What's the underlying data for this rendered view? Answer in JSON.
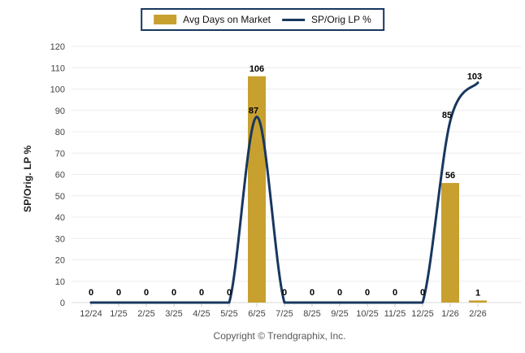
{
  "legend": {
    "items": [
      {
        "label": "Avg Days on Market",
        "type": "bar",
        "color": "#C7A02F"
      },
      {
        "label": "SP/Orig LP %",
        "type": "line",
        "color": "#17375E"
      }
    ]
  },
  "chart_data": {
    "type": "bar+line combo",
    "categories": [
      "12/24",
      "1/25",
      "2/25",
      "3/25",
      "4/25",
      "5/25",
      "6/25",
      "7/25",
      "8/25",
      "9/25",
      "10/25",
      "11/25",
      "12/25",
      "1/26",
      "2/26"
    ],
    "series": [
      {
        "name": "Avg Days on Market",
        "type": "bar",
        "color": "#C7A02F",
        "values": [
          0,
          0,
          0,
          0,
          0,
          0,
          106,
          0,
          0,
          0,
          0,
          0,
          0,
          56,
          1
        ]
      },
      {
        "name": "SP/Orig LP %",
        "type": "line",
        "color": "#17375E",
        "values": [
          0,
          0,
          0,
          0,
          0,
          0,
          87,
          0,
          0,
          0,
          0,
          0,
          0,
          85,
          103
        ]
      }
    ],
    "title": "",
    "xlabel": "",
    "ylabel": "SP/Orig. LP %",
    "ylim": [
      0,
      120
    ],
    "ytick_step": 10,
    "yticks": [
      0,
      10,
      20,
      30,
      40,
      50,
      60,
      70,
      80,
      90,
      100,
      110,
      120
    ],
    "grid": true,
    "legend_position": "top-center",
    "data_labels": true
  },
  "colors": {
    "bar": "#C7A02F",
    "line": "#17375E",
    "grid": "#ECECEC",
    "axis_text": "#444444",
    "data_label": "#000000",
    "copyright_text": "#595959"
  },
  "footer": {
    "copyright": "Copyright © Trendgraphix, Inc."
  }
}
